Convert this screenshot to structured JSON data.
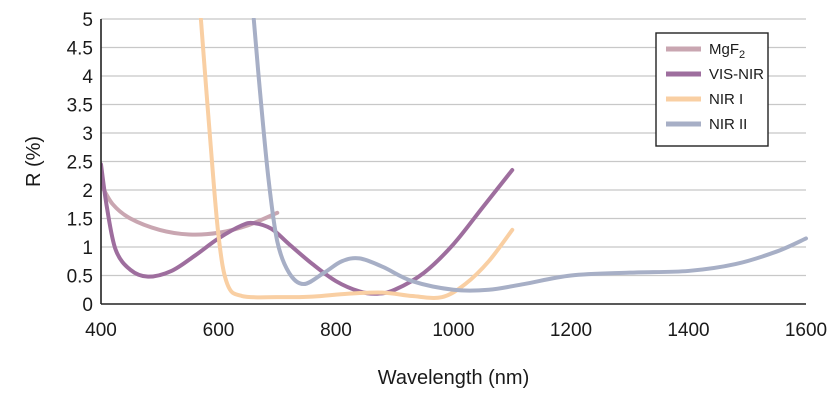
{
  "chart_data": {
    "type": "line",
    "title": "",
    "xlabel": "Wavelength (nm)",
    "ylabel": "R (%)",
    "xlim": [
      400,
      1600
    ],
    "ylim": [
      0,
      5
    ],
    "x_ticks": [
      "400",
      "600",
      "800",
      "1000",
      "1200",
      "1400",
      "1600"
    ],
    "y_ticks": [
      "0",
      "0.5",
      "1",
      "1.5",
      "2",
      "2.5",
      "3",
      "3.5",
      "4",
      "4.5",
      "5"
    ],
    "grid": true,
    "legend_position": "top-right",
    "series": [
      {
        "name": "MgF",
        "name_subscript": "2",
        "color": "#c9a6b1",
        "x": [
          400,
          420,
          450,
          500,
          550,
          600,
          650,
          700
        ],
        "y": [
          2.1,
          1.75,
          1.5,
          1.3,
          1.22,
          1.25,
          1.38,
          1.6
        ]
      },
      {
        "name": "VIS-NIR",
        "name_subscript": "",
        "color": "#9e6e9e",
        "x": [
          400,
          410,
          425,
          450,
          480,
          520,
          560,
          600,
          640,
          660,
          690,
          720,
          760,
          800,
          840,
          870,
          900,
          950,
          1000,
          1050,
          1100
        ],
        "y": [
          2.45,
          1.7,
          0.95,
          0.6,
          0.48,
          0.58,
          0.85,
          1.15,
          1.38,
          1.42,
          1.32,
          1.05,
          0.7,
          0.4,
          0.22,
          0.18,
          0.25,
          0.55,
          1.05,
          1.7,
          2.35
        ]
      },
      {
        "name": "NIR I",
        "name_subscript": "",
        "color": "#f9cfa3",
        "x": [
          570,
          585,
          600,
          615,
          640,
          700,
          760,
          820,
          880,
          930,
          980,
          1020,
          1060,
          1100
        ],
        "y": [
          5,
          3.0,
          1.2,
          0.35,
          0.14,
          0.12,
          0.13,
          0.18,
          0.2,
          0.14,
          0.12,
          0.35,
          0.75,
          1.3
        ]
      },
      {
        "name": "NIR II",
        "name_subscript": "",
        "color": "#a7afc6",
        "x": [
          660,
          670,
          685,
          700,
          720,
          745,
          780,
          810,
          840,
          880,
          930,
          1000,
          1060,
          1120,
          1200,
          1300,
          1400,
          1480,
          1550,
          1600
        ],
        "y": [
          5,
          3.8,
          2.2,
          1.1,
          0.55,
          0.35,
          0.55,
          0.75,
          0.8,
          0.65,
          0.4,
          0.25,
          0.25,
          0.35,
          0.5,
          0.55,
          0.58,
          0.7,
          0.92,
          1.15
        ]
      }
    ]
  }
}
